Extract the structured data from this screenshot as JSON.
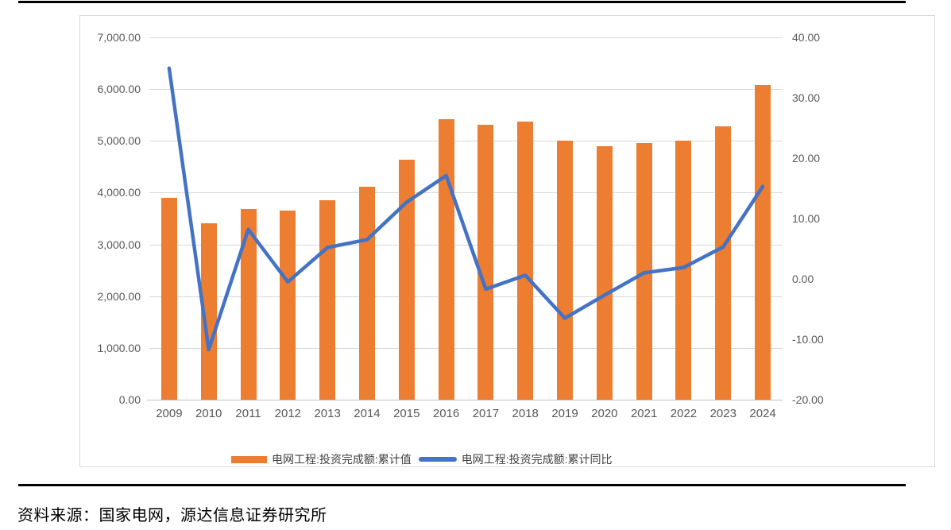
{
  "source_note": "资料来源：国家电网，源达信息证券研究所",
  "colors": {
    "bar": "#ED7D31",
    "line": "#4472C4",
    "gridline": "#D9D9D9",
    "axis_line": "#BFBFBF",
    "tick_text": "#595959",
    "card_border": "#D9D9D9",
    "divider": "#000000"
  },
  "chart_data": {
    "type": "bar",
    "subtype": "bar+line dual axis",
    "categories": [
      "2009",
      "2010",
      "2011",
      "2012",
      "2013",
      "2014",
      "2015",
      "2016",
      "2017",
      "2018",
      "2019",
      "2020",
      "2021",
      "2022",
      "2023",
      "2024"
    ],
    "series": [
      {
        "name": "电网工程:投资完成额:累计值",
        "type": "bar",
        "axis": "left",
        "color": "#ED7D31",
        "values": [
          3898,
          3410,
          3682,
          3661,
          3856,
          4118,
          4640,
          5426,
          5315,
          5373,
          5012,
          4896,
          4951,
          5012,
          5275,
          6083
        ]
      },
      {
        "name": "电网工程:投资完成额:累计同比",
        "type": "line",
        "axis": "right",
        "color": "#4472C4",
        "values": [
          34.9,
          -11.7,
          8.2,
          -0.5,
          5.2,
          6.5,
          12.7,
          17.1,
          -1.7,
          0.6,
          -6.5,
          -2.7,
          1.0,
          1.9,
          5.3,
          15.3
        ]
      }
    ],
    "left_axis": {
      "min": 0,
      "max": 7000,
      "step": 1000,
      "tick_labels": [
        "7,000.00",
        "6,000.00",
        "5,000.00",
        "4,000.00",
        "3,000.00",
        "2,000.00",
        "1,000.00",
        "0.00"
      ]
    },
    "right_axis": {
      "min": -20,
      "max": 40,
      "step": 10,
      "tick_labels": [
        "40.00",
        "30.00",
        "20.00",
        "10.00",
        "0.00",
        "-10.00",
        "-20.00"
      ]
    },
    "grid": true,
    "legend_position": "bottom",
    "title": ""
  }
}
